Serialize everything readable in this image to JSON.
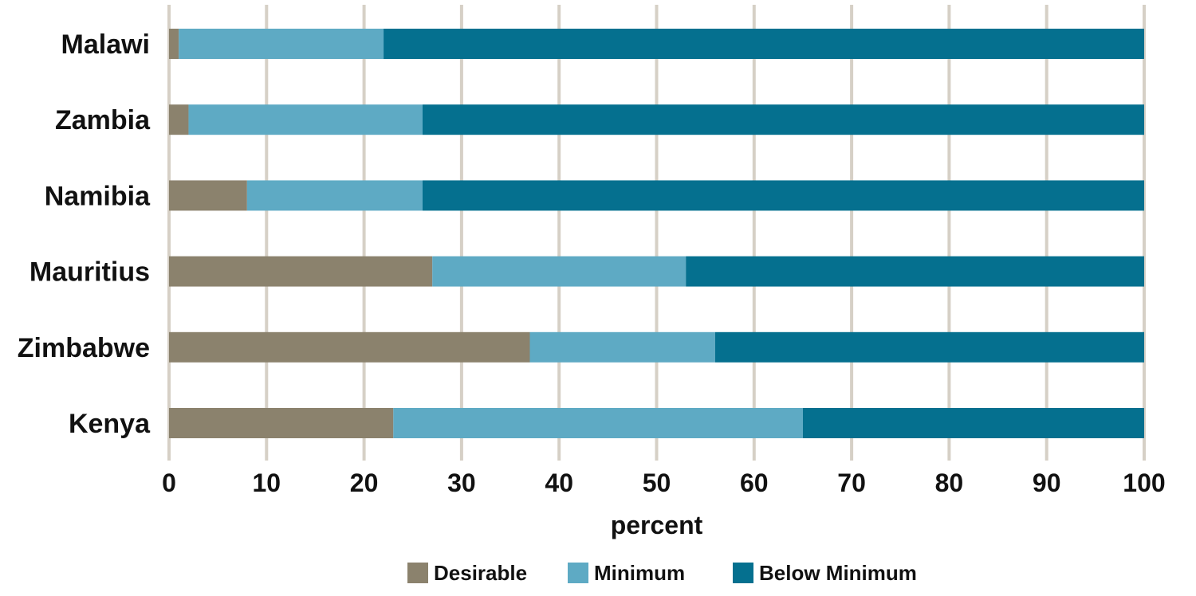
{
  "chart_data": {
    "type": "bar",
    "orientation": "horizontal",
    "stacked": true,
    "categories": [
      "Malawi",
      "Zambia",
      "Namibia",
      "Mauritius",
      "Zimbabwe",
      "Kenya"
    ],
    "series": [
      {
        "name": "Desirable",
        "color": "#8b826d",
        "values": [
          1,
          2,
          8,
          27,
          37,
          23
        ]
      },
      {
        "name": "Minimum",
        "color": "#5eaac4",
        "values": [
          21,
          24,
          18,
          26,
          19,
          42
        ]
      },
      {
        "name": "Below Minimum",
        "color": "#05708f",
        "values": [
          78,
          74,
          74,
          47,
          44,
          35
        ]
      }
    ],
    "xlabel": "percent",
    "ylabel": "",
    "xlim": [
      0,
      100
    ],
    "xticks": [
      "0",
      "10",
      "20",
      "30",
      "40",
      "50",
      "60",
      "70",
      "80",
      "90",
      "100"
    ],
    "grid": true,
    "grid_color": "#d6d0c6",
    "legend_position": "bottom"
  }
}
